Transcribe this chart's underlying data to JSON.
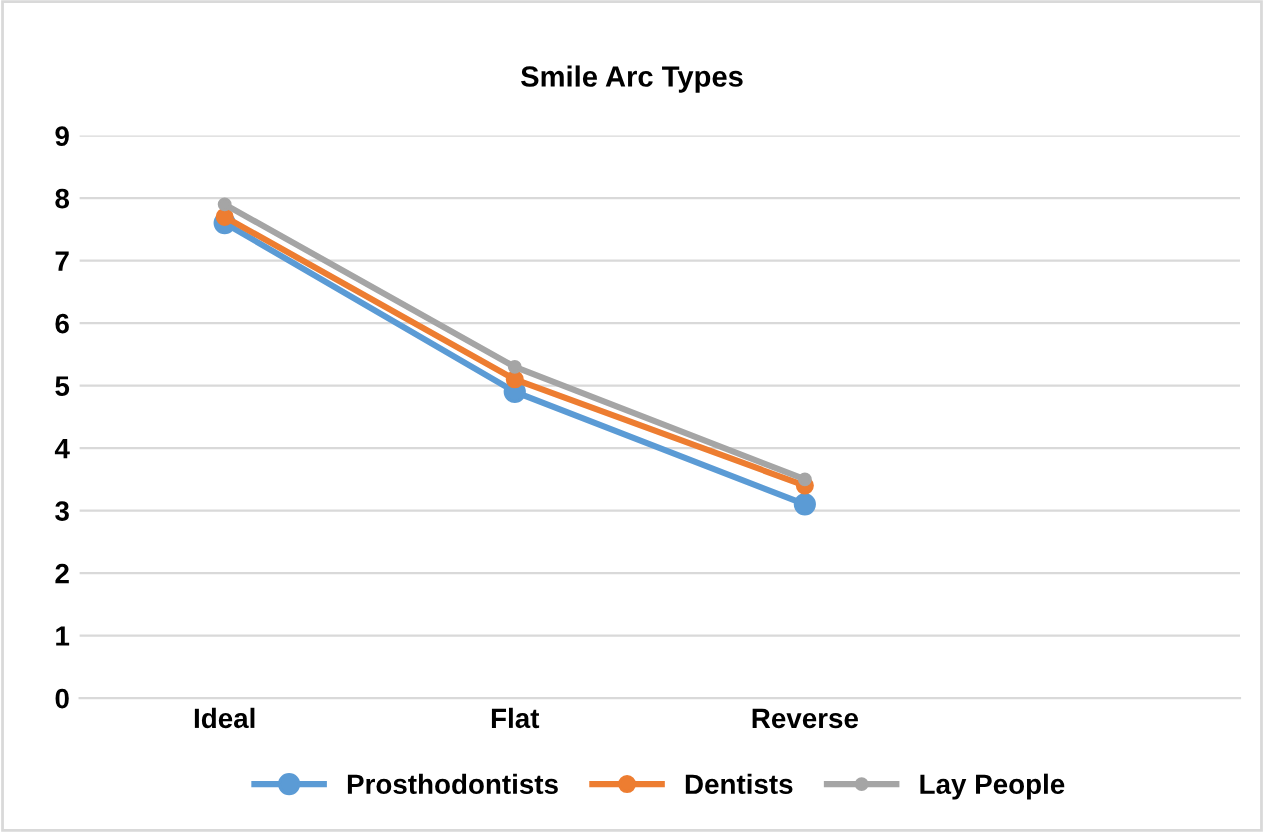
{
  "chart_data": {
    "type": "line",
    "title": "Smile Arc Types",
    "categories": [
      "Ideal",
      "Flat",
      "Reverse",
      null
    ],
    "series": [
      {
        "name": "Prosthodontists",
        "color": "#5b9bd5",
        "values": [
          7.6,
          4.9,
          3.1,
          null
        ]
      },
      {
        "name": "Dentists",
        "color": "#ed7d31",
        "values": [
          7.7,
          5.1,
          3.4,
          null
        ]
      },
      {
        "name": "Lay People",
        "color": "#a5a5a5",
        "values": [
          7.9,
          5.3,
          3.5,
          null
        ]
      }
    ],
    "ylim": [
      0,
      9
    ],
    "yticks": [
      0,
      1,
      2,
      3,
      4,
      5,
      6,
      7,
      8,
      9
    ],
    "grid": "y",
    "legend": "bottom",
    "marker": "circle",
    "line_style": "solid"
  }
}
